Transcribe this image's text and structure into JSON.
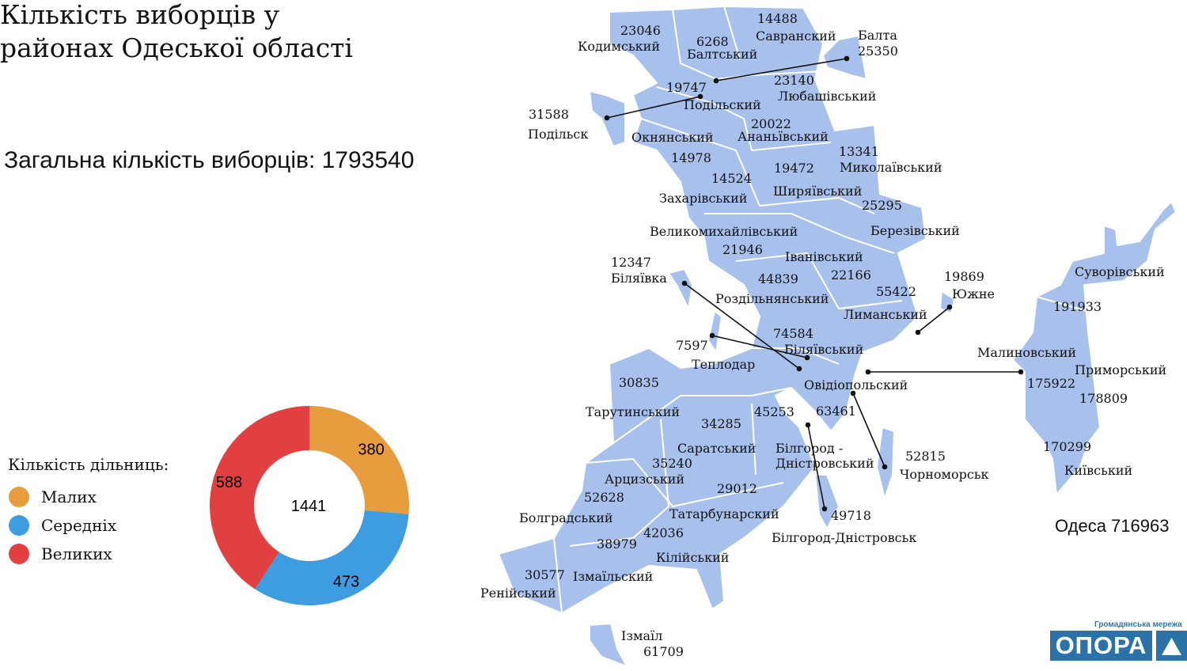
{
  "title": "Кількість виборців у\nрайонах Одеської області",
  "total_label": "Загальна кількість виборців: 1793540",
  "legend": {
    "title": "Кількість дільниць:",
    "items": [
      {
        "label": "Малих",
        "color": "#E79C3D"
      },
      {
        "label": "Середніх",
        "color": "#3E9DE1"
      },
      {
        "label": "Великих",
        "color": "#E24040"
      }
    ]
  },
  "chart_data": {
    "type": "pie",
    "variant": "donut",
    "center_label": "1441",
    "categories": [
      "Малих",
      "Середніх",
      "Великих"
    ],
    "values": [
      380,
      473,
      588
    ],
    "colors": [
      "#E79C3D",
      "#3E9DE1",
      "#E24040"
    ]
  },
  "map": {
    "fill_color": "#A7C0EC",
    "regions": [
      {
        "name": "Кодимський",
        "voters": "23046"
      },
      {
        "name": "Балтський",
        "voters": "6268"
      },
      {
        "name": "Савранский",
        "voters": "14488"
      },
      {
        "name": "Балта",
        "voters": "25350"
      },
      {
        "name": "Подільский",
        "voters": "19747"
      },
      {
        "name": "Любашівський",
        "voters": "23140"
      },
      {
        "name": "Подільск",
        "voters": "31588"
      },
      {
        "name": "Окнянський",
        "voters": "14978"
      },
      {
        "name": "Ананьївський",
        "voters": "20022"
      },
      {
        "name": "Миколаївський",
        "voters": "13341"
      },
      {
        "name": "Захарівський",
        "voters": "14524"
      },
      {
        "name": "Ширяївський",
        "voters": "19472"
      },
      {
        "name": "Березівський",
        "voters": "25295"
      },
      {
        "name": "Великомихайлівський",
        "voters": "21946"
      },
      {
        "name": "Іванівський",
        "voters": "22166"
      },
      {
        "name": "Біляївка",
        "voters": "12347"
      },
      {
        "name": "Роздільнянський",
        "voters": "44839"
      },
      {
        "name": "Южне",
        "voters": "19869"
      },
      {
        "name": "Лиманський",
        "voters": "55422"
      },
      {
        "name": "Біляївський",
        "voters": "74584"
      },
      {
        "name": "Теплодар",
        "voters": "7597"
      },
      {
        "name": "Овідіопольский",
        "voters": "63461"
      },
      {
        "name": "Тарутинський",
        "voters": "30835"
      },
      {
        "name": "Саратський",
        "voters": "34285"
      },
      {
        "name": "Білгород -\nДністровський",
        "voters": "45253"
      },
      {
        "name": "Чорноморськ",
        "voters": "52815"
      },
      {
        "name": "Арцизський",
        "voters": "35240"
      },
      {
        "name": "Татарбунарский",
        "voters": "29012"
      },
      {
        "name": "Болградський",
        "voters": "52628"
      },
      {
        "name": "Білгород-Дністровськ",
        "voters": "49718"
      },
      {
        "name": "Кілійський",
        "voters": "42036"
      },
      {
        "name": "Ізмаїльский",
        "voters": "38979"
      },
      {
        "name": "Ренійський",
        "voters": "30577"
      },
      {
        "name": "Ізмаїл",
        "voters": "61709"
      },
      {
        "name": "Суворівський",
        "voters": "191933"
      },
      {
        "name": "Малиновський",
        "voters": "175922"
      },
      {
        "name": "Приморський",
        "voters": "178809"
      },
      {
        "name": "Київський",
        "voters": "170299"
      }
    ],
    "odesa_label": "Одеса 716963"
  },
  "logo": {
    "subtitle": "Громадянська мережа",
    "name": "ОПОРА"
  }
}
